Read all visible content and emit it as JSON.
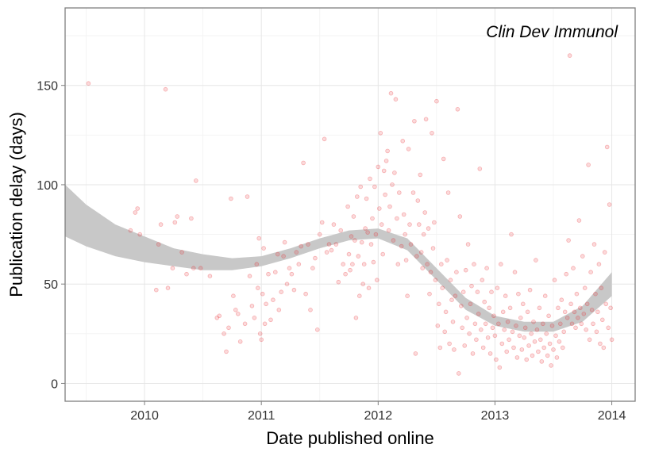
{
  "chart_data": {
    "type": "scatter",
    "title": "",
    "annotation": "Clin Dev Immunol",
    "xlabel": "Date published online",
    "ylabel": "Publication delay (days)",
    "xlim": [
      2009.32,
      2014.2
    ],
    "ylim": [
      -9,
      189
    ],
    "x_ticks": [
      2010,
      2011,
      2012,
      2013,
      2014
    ],
    "y_ticks": [
      0,
      50,
      100,
      150
    ],
    "grid": true,
    "point_color": "#e8262b",
    "band_color": "#c8c8c8",
    "smooth_band": [
      {
        "x": 2009.32,
        "lo": 74,
        "hi": 100
      },
      {
        "x": 2009.5,
        "lo": 69,
        "hi": 90
      },
      {
        "x": 2009.75,
        "lo": 64,
        "hi": 80
      },
      {
        "x": 2010.0,
        "lo": 61,
        "hi": 74
      },
      {
        "x": 2010.25,
        "lo": 59,
        "hi": 68
      },
      {
        "x": 2010.5,
        "lo": 57,
        "hi": 65
      },
      {
        "x": 2010.75,
        "lo": 57,
        "hi": 63
      },
      {
        "x": 2011.0,
        "lo": 59,
        "hi": 64
      },
      {
        "x": 2011.25,
        "lo": 63,
        "hi": 68
      },
      {
        "x": 2011.5,
        "lo": 68,
        "hi": 73
      },
      {
        "x": 2011.75,
        "lo": 72,
        "hi": 77
      },
      {
        "x": 2012.0,
        "lo": 73,
        "hi": 78
      },
      {
        "x": 2012.25,
        "lo": 67,
        "hi": 73
      },
      {
        "x": 2012.5,
        "lo": 52,
        "hi": 58
      },
      {
        "x": 2012.75,
        "lo": 37,
        "hi": 43
      },
      {
        "x": 2013.0,
        "lo": 29,
        "hi": 34
      },
      {
        "x": 2013.25,
        "lo": 26,
        "hi": 31
      },
      {
        "x": 2013.5,
        "lo": 26,
        "hi": 31
      },
      {
        "x": 2013.75,
        "lo": 31,
        "hi": 39
      },
      {
        "x": 2014.0,
        "lo": 44,
        "hi": 56
      }
    ],
    "points": [
      [
        2009.52,
        151
      ],
      [
        2009.88,
        77
      ],
      [
        2009.92,
        86
      ],
      [
        2009.94,
        88
      ],
      [
        2009.96,
        75
      ],
      [
        2010.1,
        47
      ],
      [
        2010.12,
        70
      ],
      [
        2010.14,
        80
      ],
      [
        2010.18,
        148
      ],
      [
        2010.2,
        48
      ],
      [
        2010.24,
        58
      ],
      [
        2010.26,
        81
      ],
      [
        2010.28,
        84
      ],
      [
        2010.32,
        66
      ],
      [
        2010.36,
        55
      ],
      [
        2010.4,
        83
      ],
      [
        2010.42,
        58
      ],
      [
        2010.44,
        102
      ],
      [
        2010.48,
        58
      ],
      [
        2010.56,
        54
      ],
      [
        2010.62,
        33
      ],
      [
        2010.64,
        34
      ],
      [
        2010.68,
        25
      ],
      [
        2010.7,
        16
      ],
      [
        2010.72,
        28
      ],
      [
        2010.74,
        93
      ],
      [
        2010.76,
        44
      ],
      [
        2010.78,
        37
      ],
      [
        2010.8,
        35
      ],
      [
        2010.82,
        21
      ],
      [
        2010.86,
        30
      ],
      [
        2010.88,
        94
      ],
      [
        2010.9,
        54
      ],
      [
        2010.92,
        39
      ],
      [
        2010.94,
        33
      ],
      [
        2010.96,
        60
      ],
      [
        2010.97,
        48
      ],
      [
        2010.98,
        73
      ],
      [
        2010.99,
        25
      ],
      [
        2011.0,
        22
      ],
      [
        2011.01,
        45
      ],
      [
        2011.02,
        68
      ],
      [
        2011.03,
        30
      ],
      [
        2011.04,
        40
      ],
      [
        2011.06,
        55
      ],
      [
        2011.08,
        32
      ],
      [
        2011.1,
        42
      ],
      [
        2011.12,
        56
      ],
      [
        2011.14,
        65
      ],
      [
        2011.15,
        37
      ],
      [
        2011.17,
        46
      ],
      [
        2011.19,
        64
      ],
      [
        2011.2,
        71
      ],
      [
        2011.22,
        50
      ],
      [
        2011.24,
        58
      ],
      [
        2011.26,
        55
      ],
      [
        2011.28,
        47
      ],
      [
        2011.3,
        66
      ],
      [
        2011.32,
        60
      ],
      [
        2011.34,
        69
      ],
      [
        2011.36,
        111
      ],
      [
        2011.38,
        45
      ],
      [
        2011.4,
        70
      ],
      [
        2011.42,
        37
      ],
      [
        2011.44,
        58
      ],
      [
        2011.46,
        63
      ],
      [
        2011.48,
        27
      ],
      [
        2011.5,
        75
      ],
      [
        2011.52,
        81
      ],
      [
        2011.54,
        123
      ],
      [
        2011.56,
        66
      ],
      [
        2011.58,
        70
      ],
      [
        2011.6,
        67
      ],
      [
        2011.62,
        80
      ],
      [
        2011.64,
        70
      ],
      [
        2011.66,
        51
      ],
      [
        2011.68,
        77
      ],
      [
        2011.7,
        60
      ],
      [
        2011.72,
        55
      ],
      [
        2011.74,
        89
      ],
      [
        2011.75,
        65
      ],
      [
        2011.76,
        57
      ],
      [
        2011.77,
        74
      ],
      [
        2011.78,
        60
      ],
      [
        2011.79,
        84
      ],
      [
        2011.8,
        72
      ],
      [
        2011.81,
        33
      ],
      [
        2011.82,
        94
      ],
      [
        2011.83,
        64
      ],
      [
        2011.84,
        44
      ],
      [
        2011.85,
        99
      ],
      [
        2011.86,
        71
      ],
      [
        2011.87,
        50
      ],
      [
        2011.88,
        60
      ],
      [
        2011.89,
        78
      ],
      [
        2011.9,
        93
      ],
      [
        2011.91,
        76
      ],
      [
        2011.92,
        48
      ],
      [
        2011.93,
        103
      ],
      [
        2011.94,
        70
      ],
      [
        2011.95,
        83
      ],
      [
        2011.96,
        61
      ],
      [
        2011.97,
        99
      ],
      [
        2011.98,
        75
      ],
      [
        2011.99,
        52
      ],
      [
        2012.0,
        109
      ],
      [
        2012.01,
        88
      ],
      [
        2012.02,
        126
      ],
      [
        2012.03,
        80
      ],
      [
        2012.04,
        65
      ],
      [
        2012.05,
        107
      ],
      [
        2012.06,
        95
      ],
      [
        2012.07,
        112
      ],
      [
        2012.08,
        117
      ],
      [
        2012.09,
        77
      ],
      [
        2012.1,
        89
      ],
      [
        2012.11,
        146
      ],
      [
        2012.12,
        100
      ],
      [
        2012.13,
        72
      ],
      [
        2012.14,
        106
      ],
      [
        2012.15,
        143
      ],
      [
        2012.16,
        83
      ],
      [
        2012.17,
        60
      ],
      [
        2012.18,
        96
      ],
      [
        2012.2,
        69
      ],
      [
        2012.21,
        122
      ],
      [
        2012.22,
        85
      ],
      [
        2012.23,
        75
      ],
      [
        2012.24,
        62
      ],
      [
        2012.25,
        44
      ],
      [
        2012.26,
        118
      ],
      [
        2012.27,
        80
      ],
      [
        2012.28,
        70
      ],
      [
        2012.3,
        96
      ],
      [
        2012.31,
        132
      ],
      [
        2012.32,
        15
      ],
      [
        2012.33,
        64
      ],
      [
        2012.34,
        92
      ],
      [
        2012.35,
        80
      ],
      [
        2012.36,
        105
      ],
      [
        2012.37,
        66
      ],
      [
        2012.38,
        58
      ],
      [
        2012.39,
        75
      ],
      [
        2012.4,
        86
      ],
      [
        2012.41,
        133
      ],
      [
        2012.42,
        60
      ],
      [
        2012.43,
        78
      ],
      [
        2012.44,
        45
      ],
      [
        2012.45,
        56
      ],
      [
        2012.46,
        126
      ],
      [
        2012.47,
        68
      ],
      [
        2012.48,
        81
      ],
      [
        2012.49,
        52
      ],
      [
        2012.5,
        142
      ],
      [
        2012.51,
        29
      ],
      [
        2012.52,
        40
      ],
      [
        2012.53,
        18
      ],
      [
        2012.54,
        60
      ],
      [
        2012.55,
        48
      ],
      [
        2012.56,
        113
      ],
      [
        2012.57,
        26
      ],
      [
        2012.58,
        36
      ],
      [
        2012.59,
        62
      ],
      [
        2012.6,
        96
      ],
      [
        2012.61,
        20
      ],
      [
        2012.62,
        52
      ],
      [
        2012.63,
        42
      ],
      [
        2012.64,
        31
      ],
      [
        2012.65,
        17
      ],
      [
        2012.66,
        44
      ],
      [
        2012.67,
        56
      ],
      [
        2012.68,
        138
      ],
      [
        2012.69,
        5
      ],
      [
        2012.7,
        84
      ],
      [
        2012.71,
        39
      ],
      [
        2012.72,
        28
      ],
      [
        2012.73,
        46
      ],
      [
        2012.74,
        19
      ],
      [
        2012.75,
        57
      ],
      [
        2012.76,
        33
      ],
      [
        2012.77,
        70
      ],
      [
        2012.78,
        25
      ],
      [
        2012.79,
        40
      ],
      [
        2012.8,
        49
      ],
      [
        2012.81,
        15
      ],
      [
        2012.82,
        60
      ],
      [
        2012.83,
        30
      ],
      [
        2012.84,
        22
      ],
      [
        2012.85,
        46
      ],
      [
        2012.86,
        35
      ],
      [
        2012.87,
        108
      ],
      [
        2012.88,
        27
      ],
      [
        2012.89,
        52
      ],
      [
        2012.9,
        18
      ],
      [
        2012.91,
        41
      ],
      [
        2012.92,
        30
      ],
      [
        2012.93,
        58
      ],
      [
        2012.94,
        23
      ],
      [
        2012.95,
        38
      ],
      [
        2012.96,
        15
      ],
      [
        2012.97,
        46
      ],
      [
        2012.98,
        28
      ],
      [
        2012.99,
        34
      ],
      [
        2013.0,
        24
      ],
      [
        2013.01,
        12
      ],
      [
        2013.02,
        48
      ],
      [
        2013.03,
        30
      ],
      [
        2013.04,
        8
      ],
      [
        2013.05,
        60
      ],
      [
        2013.06,
        20
      ],
      [
        2013.07,
        36
      ],
      [
        2013.08,
        27
      ],
      [
        2013.09,
        44
      ],
      [
        2013.1,
        16
      ],
      [
        2013.11,
        31
      ],
      [
        2013.12,
        22
      ],
      [
        2013.13,
        38
      ],
      [
        2013.14,
        75
      ],
      [
        2013.15,
        26
      ],
      [
        2013.16,
        18
      ],
      [
        2013.17,
        56
      ],
      [
        2013.18,
        29
      ],
      [
        2013.19,
        13
      ],
      [
        2013.2,
        45
      ],
      [
        2013.21,
        24
      ],
      [
        2013.22,
        33
      ],
      [
        2013.23,
        17
      ],
      [
        2013.24,
        40
      ],
      [
        2013.25,
        23
      ],
      [
        2013.26,
        28
      ],
      [
        2013.27,
        12
      ],
      [
        2013.28,
        36
      ],
      [
        2013.29,
        19
      ],
      [
        2013.3,
        47
      ],
      [
        2013.31,
        25
      ],
      [
        2013.32,
        14
      ],
      [
        2013.33,
        31
      ],
      [
        2013.34,
        21
      ],
      [
        2013.35,
        62
      ],
      [
        2013.36,
        27
      ],
      [
        2013.37,
        16
      ],
      [
        2013.38,
        38
      ],
      [
        2013.39,
        22
      ],
      [
        2013.4,
        11
      ],
      [
        2013.41,
        30
      ],
      [
        2013.42,
        18
      ],
      [
        2013.43,
        44
      ],
      [
        2013.44,
        25
      ],
      [
        2013.45,
        14
      ],
      [
        2013.46,
        34
      ],
      [
        2013.47,
        20
      ],
      [
        2013.48,
        9
      ],
      [
        2013.49,
        29
      ],
      [
        2013.5,
        17
      ],
      [
        2013.51,
        52
      ],
      [
        2013.52,
        24
      ],
      [
        2013.53,
        13
      ],
      [
        2013.54,
        38
      ],
      [
        2013.55,
        21
      ],
      [
        2013.56,
        30
      ],
      [
        2013.57,
        42
      ],
      [
        2013.58,
        18
      ],
      [
        2013.59,
        26
      ],
      [
        2013.6,
        36
      ],
      [
        2013.61,
        55
      ],
      [
        2013.62,
        33
      ],
      [
        2013.63,
        72
      ],
      [
        2013.64,
        165
      ],
      [
        2013.65,
        40
      ],
      [
        2013.66,
        30
      ],
      [
        2013.67,
        58
      ],
      [
        2013.68,
        36
      ],
      [
        2013.69,
        28
      ],
      [
        2013.7,
        45
      ],
      [
        2013.71,
        33
      ],
      [
        2013.72,
        82
      ],
      [
        2013.73,
        38
      ],
      [
        2013.74,
        30
      ],
      [
        2013.75,
        64
      ],
      [
        2013.76,
        35
      ],
      [
        2013.77,
        48
      ],
      [
        2013.78,
        27
      ],
      [
        2013.79,
        40
      ],
      [
        2013.8,
        110
      ],
      [
        2013.81,
        22
      ],
      [
        2013.82,
        56
      ],
      [
        2013.83,
        37
      ],
      [
        2013.84,
        30
      ],
      [
        2013.85,
        70
      ],
      [
        2013.86,
        45
      ],
      [
        2013.87,
        26
      ],
      [
        2013.88,
        36
      ],
      [
        2013.89,
        60
      ],
      [
        2013.9,
        20
      ],
      [
        2013.91,
        48
      ],
      [
        2013.92,
        32
      ],
      [
        2013.93,
        18
      ],
      [
        2013.94,
        66
      ],
      [
        2013.95,
        40
      ],
      [
        2013.96,
        119
      ],
      [
        2013.97,
        28
      ],
      [
        2013.98,
        90
      ],
      [
        2013.99,
        38
      ],
      [
        2014.0,
        22
      ]
    ]
  }
}
